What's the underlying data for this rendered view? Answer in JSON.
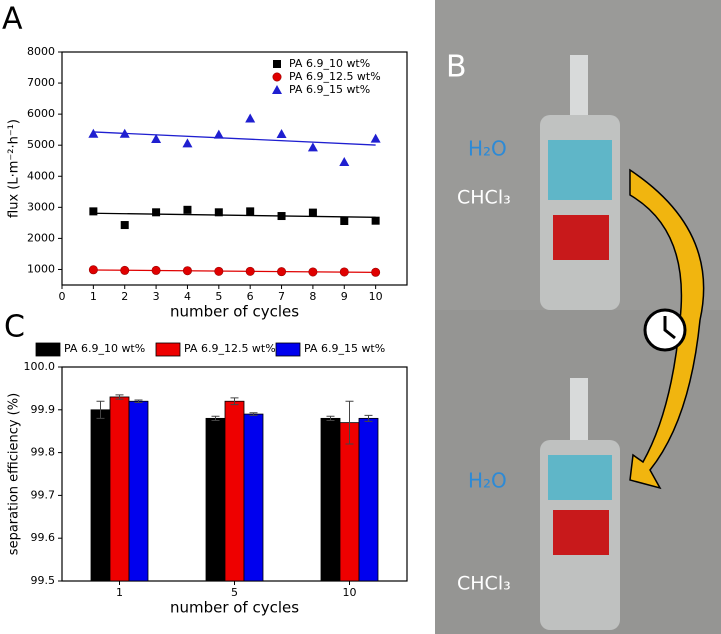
{
  "panels": [
    "A",
    "B",
    "C"
  ],
  "photo": {
    "labels": [
      "H₂O",
      "CHCl₃",
      "H₂O",
      "CHCl₃"
    ]
  },
  "chart_data": [
    {
      "type": "scatter",
      "x_label": "number of cycles",
      "y_label": "flux (L·m⁻²·h⁻¹)",
      "x": [
        1,
        2,
        3,
        4,
        5,
        6,
        7,
        8,
        9,
        10
      ],
      "xlim": [
        0,
        11
      ],
      "xticks": [
        0,
        1,
        2,
        3,
        4,
        5,
        6,
        7,
        8,
        9,
        10
      ],
      "ylim": [
        500,
        8000
      ],
      "yticks": [
        1000,
        2000,
        3000,
        4000,
        5000,
        6000,
        7000,
        8000
      ],
      "trend_lines": true,
      "legend": "top-right",
      "series": [
        {
          "name": "PA 6.9_10 wt%",
          "color": "#000000",
          "marker": "square",
          "values": [
            2870,
            2430,
            2840,
            2920,
            2840,
            2870,
            2720,
            2830,
            2560,
            2570
          ]
        },
        {
          "name": "PA 6.9_12.5 wt%",
          "color": "#e00000",
          "marker": "circle",
          "values": [
            990,
            970,
            970,
            960,
            940,
            940,
            930,
            920,
            920,
            910
          ]
        },
        {
          "name": "PA 6.9_15 wt%",
          "color": "#1f1fd0",
          "marker": "triangle",
          "values": [
            5370,
            5370,
            5200,
            5060,
            5340,
            5860,
            5360,
            4930,
            4460,
            5210
          ]
        }
      ]
    },
    {
      "type": "bar",
      "x_label": "number of cycles",
      "y_label": "separation efficiency (%)",
      "categories": [
        "1",
        "5",
        "10"
      ],
      "ylim": [
        99.5,
        100
      ],
      "yticks": [
        99.5,
        99.6,
        99.7,
        99.8,
        99.9,
        {
          "value": 100,
          "label": "100.0"
        }
      ],
      "legend": "top-outside",
      "series": [
        {
          "name": "PA 6.9_10 wt%",
          "color": "#000000",
          "values": [
            99.9,
            99.88,
            99.88
          ],
          "errors": [
            0.02,
            0.005,
            0.005
          ]
        },
        {
          "name": "PA 6.9_12.5 wt%",
          "color": "#ee0000",
          "values": [
            99.93,
            99.92,
            99.87
          ],
          "errors": [
            0.005,
            0.008,
            0.05
          ]
        },
        {
          "name": "PA 6.9_15 wt%",
          "color": "#0000ee",
          "values": [
            99.92,
            99.89,
            99.88
          ],
          "errors": [
            0.003,
            0.003,
            0.007
          ]
        }
      ]
    }
  ]
}
